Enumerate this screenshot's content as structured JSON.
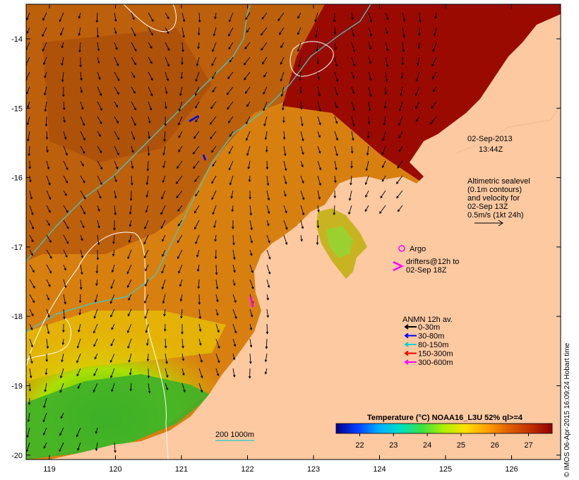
{
  "map": {
    "date_line1": "02-Sep-2013",
    "date_line2": "13:44Z",
    "altimetry_lines": [
      "Altimetric sealevel",
      "(0.1m contours)",
      "and velocity for",
      "02-Sep 13Z",
      "0.5m/s (1kt 24h)"
    ],
    "argo_label": "Argo",
    "drifters_lines": [
      "drifters@12h to",
      "02-Sep 18Z"
    ],
    "anmn_title": "ANMN 12h av.",
    "anmn_legend": [
      {
        "label": "0-30m",
        "color": "#000000"
      },
      {
        "label": "30-80m",
        "color": "#0000ff"
      },
      {
        "label": "80-150m",
        "color": "#00d0d0"
      },
      {
        "label": "150-300m",
        "color": "#ff0000"
      },
      {
        "label": "300-600m",
        "color": "#ff00ff"
      }
    ],
    "isobath_label": "200  1000m",
    "colorbar": {
      "title": "Temperature (°C) NOAA16_L3U 52% ql>=4",
      "ticks": [
        "22",
        "23",
        "24",
        "25",
        "26",
        "27"
      ],
      "range": [
        21.3,
        27.7
      ],
      "colors": [
        "#00008b",
        "#0040ff",
        "#00b0ff",
        "#00e0c0",
        "#40e040",
        "#b0f000",
        "#ffe000",
        "#ffa000",
        "#e06000",
        "#c03000",
        "#900000"
      ]
    },
    "x_ticks": [
      "119",
      "120",
      "121",
      "122",
      "123",
      "124",
      "125",
      "126"
    ],
    "y_ticks": [
      "-14",
      "-15",
      "-16",
      "-17",
      "-18",
      "-19",
      "-20"
    ],
    "credit": "© IMOS 06-Apr-2015 16:09:24 Hobart time",
    "colors": {
      "land": "#fcc9a1",
      "sst_warm": "#9a0a00",
      "sst_mid": "#c96a10",
      "sst_cool": "#e8b400",
      "sst_cold": "#50c020",
      "isobath_200": "#40c8c8",
      "sealevel_contour": "#ffffff",
      "argo": "#ff00ff"
    }
  }
}
